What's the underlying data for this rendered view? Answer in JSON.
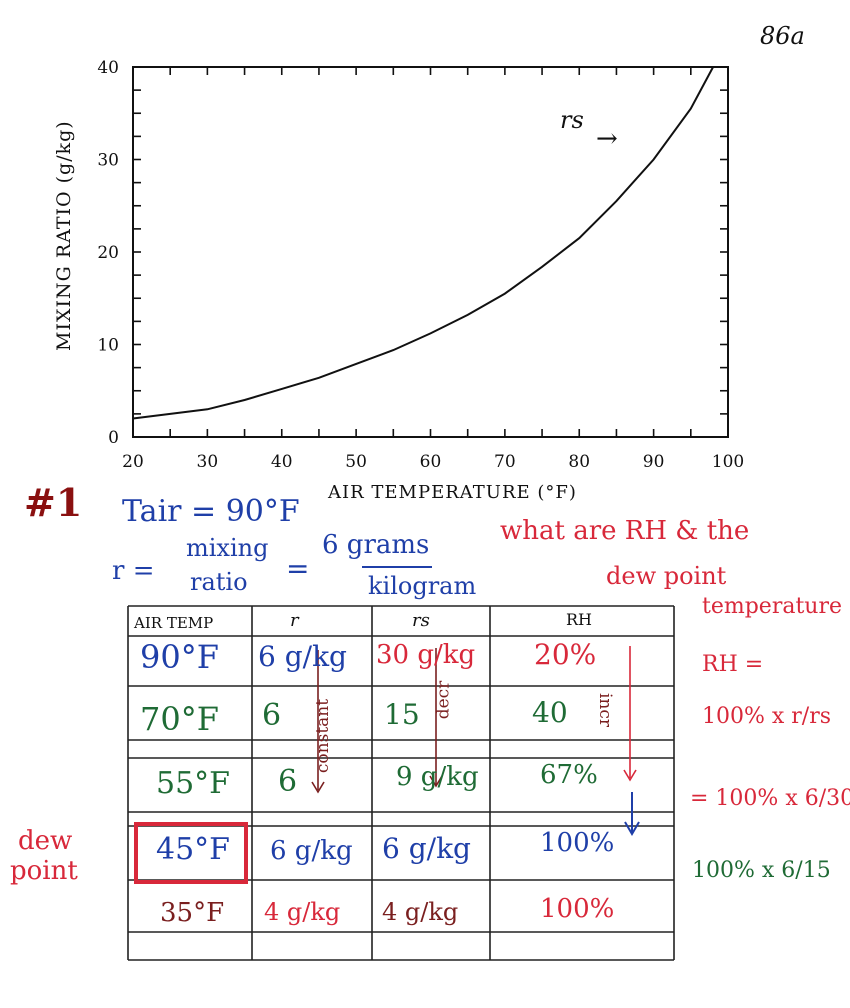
{
  "page_number": "86a",
  "chart_data": {
    "type": "line",
    "title": "",
    "xlabel": "AIR TEMPERATURE (°F)",
    "ylabel": "MIXING RATIO (g/kg)",
    "xlim": [
      20,
      100
    ],
    "ylim": [
      0,
      40
    ],
    "x_ticks": [
      20,
      30,
      40,
      50,
      60,
      70,
      80,
      90,
      100
    ],
    "y_ticks": [
      0,
      10,
      20,
      30,
      40
    ],
    "series": [
      {
        "name": "rs",
        "x": [
          20,
          30,
          35,
          40,
          45,
          50,
          55,
          60,
          65,
          70,
          75,
          80,
          85,
          90,
          95,
          98
        ],
        "y": [
          2,
          3,
          4,
          5.2,
          6.4,
          7.9,
          9.4,
          11.2,
          13.2,
          15.5,
          18.4,
          21.5,
          25.5,
          30,
          35.5,
          40
        ]
      }
    ],
    "annotation": "rs",
    "grid": false
  },
  "problem": {
    "number": "#1",
    "tair": "Tair = 90°F",
    "r_label": "r =",
    "r_def_top": "mixing",
    "r_def_bottom": "ratio",
    "eq": "=",
    "r_value_top": "6 grams",
    "r_value_bottom": "kilogram",
    "question_1": "what are RH & the",
    "question_2": "dew point",
    "question_3": "temperature"
  },
  "table": {
    "headers": [
      "AIR TEMP",
      "r",
      "rs",
      "RH"
    ],
    "rows": [
      {
        "temp": "90°F",
        "r": "6 g/kg",
        "rs": "30 g/kg",
        "rh": "20%"
      },
      {
        "temp": "70°F",
        "r": "6",
        "rs": "15",
        "rh": "40"
      },
      {
        "temp": "55°F",
        "r": "6",
        "rs": "9 g/kg",
        "rh": "67%"
      },
      {
        "temp": "45°F",
        "r": "6 g/kg",
        "rs": "6 g/kg",
        "rh": "100%"
      },
      {
        "temp": "35°F",
        "r": "4 g/kg",
        "rs": "4 g/kg",
        "rh": "100%"
      }
    ],
    "note_constant": "constant",
    "note_decr": "decr",
    "note_incr": "incr",
    "dew_point_label_1": "dew",
    "dew_point_label_2": "point"
  },
  "formulas": {
    "rh_eq": "RH =",
    "f1": "100% x r/rs",
    "f2": "= 100% x 6/30",
    "f3": "100% x 6/15"
  },
  "colors": {
    "blue": "#1f3fa8",
    "red": "#d8283a",
    "green": "#1f6b35",
    "maroon": "#7a1f1f"
  }
}
